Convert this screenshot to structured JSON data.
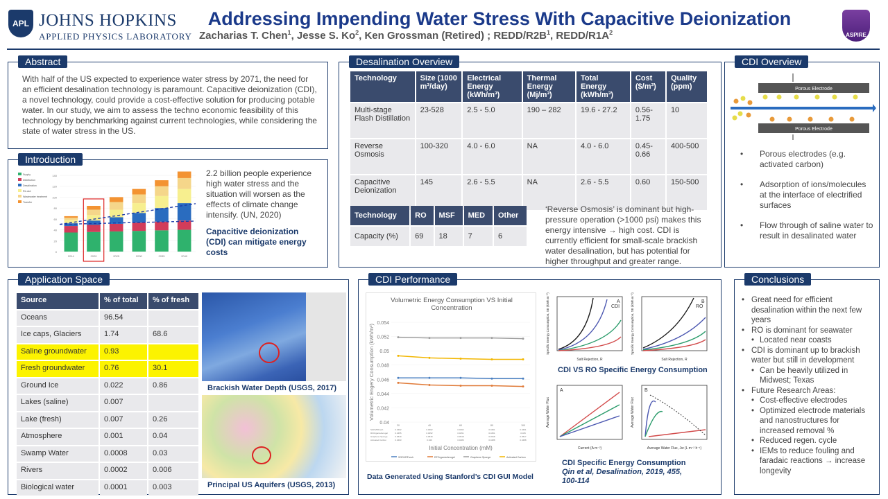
{
  "header": {
    "logo_badge": "APL",
    "org_name": "JOHNS HOPKINS",
    "org_sub": "APPLIED PHYSICS LABORATORY",
    "title": "Addressing Impending Water Stress With Capacitive Deionization",
    "authors": [
      {
        "name": "Zacharias T. Chen",
        "sup": "1"
      },
      {
        "name": ", Jesse S. Ko",
        "sup": "2"
      },
      {
        "name": ", Ken Grossman (Retired) ; REDD/R2B",
        "sup": "1"
      },
      {
        "name": ", REDD/R1A",
        "sup": "2"
      }
    ],
    "right_logo": "ASPIRE"
  },
  "abstract": {
    "heading": "Abstract",
    "text": "With half of the US expected to experience water stress by 2071, the need for an efficient desalination technology is paramount. Capacitive deionization (CDI), a novel technology, could provide a cost-effective solution for producing potable water. In our study, we aim to assess the techno economic feasibility of this technology by benchmarking against current technologies, while considering the state of water stress in the US."
  },
  "introduction": {
    "heading": "Introduction",
    "text": "2.2 billion people experience high water stress and the situation will worsen as the effects of climate change intensify. (UN, 2020)",
    "emphasis": "Capacitive deionization (CDI) can mitigate energy costs"
  },
  "desalination": {
    "heading": "Desalination Overview",
    "table1": {
      "headers": [
        "Technology",
        "Size (1000 m³/day)",
        "Electrical Energy (kWh/m³)",
        "Thermal Energy (Mj/m³)",
        "Total Energy (kWh/m³)",
        "Cost ($/m³)",
        "Quality (ppm)"
      ],
      "rows": [
        [
          "Multi-stage Flash Distillation",
          "23-528",
          "2.5 - 5.0",
          "190 – 282",
          "19.6 - 27.2",
          "0.56-1.75",
          "10"
        ],
        [
          "Reverse Osmosis",
          "100-320",
          "4.0 - 6.0",
          "NA",
          "4.0 - 6.0",
          "0.45-0.66",
          "400-500"
        ],
        [
          "Capacitive Deionization",
          "145",
          "2.6 - 5.5",
          "NA",
          "2.6 - 5.5",
          "0.60",
          "150-500"
        ]
      ]
    },
    "table2": {
      "headers": [
        "Technology",
        "RO",
        "MSF",
        "MED",
        "Other"
      ],
      "rows": [
        [
          "Capacity (%)",
          "69",
          "18",
          "7",
          "6"
        ]
      ]
    },
    "note": "‘Reverse Osmosis’ is dominant but high-pressure operation (>1000 psi) makes this energy intensive → high cost. CDI is currently efficient for small-scale brackish water desalination, but has potential for higher throughput and greater range."
  },
  "cdi_overview": {
    "heading": "CDI Overview",
    "electrode_top": "Porous Electrode",
    "electrode_bottom": "Porous Electrode",
    "bullets": [
      "Porous electrodes (e.g. activated carbon)",
      "Adsorption of ions/molecules at the interface of electrified surfaces",
      "Flow through of saline water to result in desalinated water"
    ]
  },
  "application": {
    "heading": "Application Space",
    "headers": [
      "Source",
      "% of total",
      "% of fresh"
    ],
    "rows": [
      {
        "cells": [
          "Oceans",
          "96.54",
          ""
        ],
        "highlight": false
      },
      {
        "cells": [
          "Ice caps, Glaciers",
          "1.74",
          "68.6"
        ],
        "highlight": false
      },
      {
        "cells": [
          "Saline groundwater",
          "0.93",
          ""
        ],
        "highlight": true
      },
      {
        "cells": [
          "Fresh groundwater",
          "0.76",
          "30.1"
        ],
        "highlight": true
      },
      {
        "cells": [
          "Ground Ice",
          "0.022",
          "0.86"
        ],
        "highlight": false
      },
      {
        "cells": [
          "Lakes (saline)",
          "0.007",
          ""
        ],
        "highlight": false
      },
      {
        "cells": [
          "Lake (fresh)",
          "0.007",
          "0.26"
        ],
        "highlight": false
      },
      {
        "cells": [
          "Atmosphere",
          "0.001",
          "0.04"
        ],
        "highlight": false
      },
      {
        "cells": [
          "Swamp Water",
          "0.0008",
          "0.03"
        ],
        "highlight": false
      },
      {
        "cells": [
          "Rivers",
          "0.0002",
          "0.006"
        ],
        "highlight": false
      },
      {
        "cells": [
          "Biological water",
          "0.0001",
          "0.003"
        ],
        "highlight": false
      }
    ],
    "map1_caption": "Brackish Water Depth (USGS, 2017)",
    "map2_caption": "Principal US Aquifers (USGS, 2013)"
  },
  "cdi_performance": {
    "heading": "CDI Performance",
    "chart_caption": "Data Generated Using Stanford’s CDI GUI Model",
    "fig1_caption": "CDI VS RO Specific Energy Consumption",
    "fig2_caption": "CDI Specific Energy Consumption",
    "fig2_citation": "Qin et al, Desalination, 2019, 455, 100-114",
    "fig1_panel_a": "CDI",
    "fig1_panel_b": "RO",
    "fig1_xlabel": "Salt Rejection, R",
    "fig1_ylabel": "Specific Energy Consumption, SE (kWh m⁻³)",
    "fig2_xlabel_a": "Current (A m⁻²)",
    "fig2_xlabel_b": "Average Water Flux, Jw (L m⁻² h⁻¹)",
    "fig2_ylabel": "Average Water Flux"
  },
  "chart_data": [
    {
      "type": "line",
      "title": "Volumetric Energy Consumption VS Initial Concentration",
      "xlabel": "Initial Concentration (mM)",
      "ylabel": "Volumetric Engery Consumption (kWh/m³)",
      "x": [
        20,
        40,
        60,
        80,
        100
      ],
      "ylim": [
        0.04,
        0.054
      ],
      "yticks": [
        "0.054",
        "0.052",
        "0.05",
        "0.048",
        "0.046",
        "0.044",
        "0.042",
        "0.04"
      ],
      "series": [
        {
          "name": "SGDVRFresh",
          "color": "#4a7fc1",
          "values": [
            0.0462,
            0.0462,
            0.0462,
            0.0461,
            0.0461
          ]
        },
        {
          "name": "RFOrganicAerogel",
          "color": "#e07b39",
          "values": [
            0.0455,
            0.0452,
            0.0451,
            0.0451,
            0.045
          ]
        },
        {
          "name": "Graphene Sponge",
          "color": "#9e9e9e",
          "values": [
            0.0519,
            0.0518,
            0.0518,
            0.0518,
            0.0517
          ]
        },
        {
          "name": "Activated Carbon",
          "color": "#f2b600",
          "values": [
            0.0493,
            0.049,
            0.0489,
            0.0488,
            0.0488
          ]
        }
      ]
    },
    {
      "type": "bar",
      "x": [
        "2014",
        "2020",
        "2025",
        "2030",
        "2035",
        "2040"
      ],
      "ylim": [
        0,
        140
      ],
      "yticks": [
        "140",
        "120",
        "100",
        "80",
        "60",
        "40",
        "20",
        "0"
      ],
      "series": [
        {
          "name": "Supply",
          "color": "#2fb26d",
          "values": [
            35,
            36,
            37,
            38,
            39,
            40
          ]
        },
        {
          "name": "Distribution",
          "color": "#d23c5a",
          "values": [
            12,
            13,
            14,
            15,
            16,
            17
          ]
        },
        {
          "name": "Desalination",
          "color": "#2a6cbf",
          "values": [
            5,
            8,
            12,
            18,
            25,
            32
          ]
        },
        {
          "name": "Re-use",
          "color": "#f7ef8f",
          "values": [
            6,
            10,
            14,
            18,
            22,
            26
          ]
        },
        {
          "name": "Wastewater treatment",
          "color": "#f5d68a",
          "values": [
            4,
            10,
            14,
            16,
            18,
            20
          ]
        },
        {
          "name": "Transfer",
          "color": "#f39332",
          "values": [
            3,
            7,
            9,
            10,
            11,
            12
          ]
        }
      ]
    }
  ],
  "conclusions": {
    "heading": "Conclusions",
    "items": [
      {
        "text": "Great need for efficient desalination within the next few years",
        "sub": false
      },
      {
        "text": "RO is dominant for seawater",
        "sub": false
      },
      {
        "text": "Located near coasts",
        "sub": true
      },
      {
        "text": "CDI is dominant up to brackish water but still in development",
        "sub": false
      },
      {
        "text": "Can be heavily utilized in Midwest; Texas",
        "sub": true
      },
      {
        "text": "Future Research Areas:",
        "sub": false
      },
      {
        "text": "Cost-effective electrodes",
        "sub": true
      },
      {
        "text": "Optimized electrode materials and nanostructures for increased removal %",
        "sub": true
      },
      {
        "text": "Reduced regen. cycle",
        "sub": true
      },
      {
        "text": "IEMs to reduce fouling and faradaic reactions → increase longevity",
        "sub": true
      }
    ]
  }
}
